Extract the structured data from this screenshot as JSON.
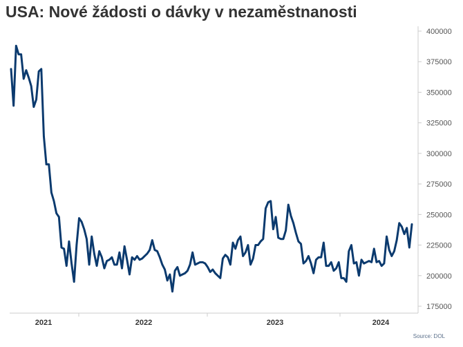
{
  "chart_data": {
    "type": "line",
    "title": "USA: Nové žádosti o dávky v nezaměstnanosti",
    "source": "Source: DOL",
    "xlabel": "",
    "ylabel": "",
    "ylim": [
      175000,
      400000
    ],
    "y_ticks": [
      "400000",
      "375000",
      "350000",
      "325000",
      "300000",
      "275000",
      "250000",
      "225000",
      "200000",
      "175000"
    ],
    "x_ticks": [
      "2021",
      "2022",
      "2023",
      "2024"
    ],
    "grid": false,
    "legend": "none",
    "color": "#0b3a6e",
    "series": [
      {
        "values": [
          369000,
          339000,
          388000,
          381000,
          381000,
          361000,
          368000,
          362000,
          355000,
          338000,
          344000,
          367000,
          369000,
          314000,
          291000,
          291000,
          268000,
          261000,
          251000,
          248000,
          223000,
          222000,
          208000,
          228000,
          210000,
          195000,
          225000,
          247000,
          244000,
          238000,
          230000,
          209000,
          232000,
          218000,
          208000,
          220000,
          215000,
          206000,
          212000,
          213000,
          215000,
          209000,
          209000,
          219000,
          206000,
          224000,
          213000,
          201000,
          215000,
          213000,
          216000,
          213000,
          214000,
          216000,
          218000,
          221000,
          229000,
          221000,
          220000,
          215000,
          209000,
          205000,
          196000,
          201000,
          187000,
          204000,
          207000,
          200000,
          201000,
          202000,
          204000,
          209000,
          219000,
          209000,
          210000,
          211000,
          211000,
          210000,
          207000,
          203000,
          205000,
          202000,
          200000,
          198000,
          214000,
          217000,
          215000,
          209000,
          227000,
          222000,
          229000,
          232000,
          216000,
          219000,
          225000,
          209000,
          214000,
          225000,
          225000,
          228000,
          230000,
          255000,
          260000,
          261000,
          238000,
          248000,
          231000,
          230000,
          230000,
          237000,
          258000,
          249000,
          243000,
          235000,
          228000,
          226000,
          210000,
          212000,
          216000,
          210000,
          202000,
          213000,
          215000,
          215000,
          227000,
          208000,
          208000,
          211000,
          204000,
          206000,
          211000,
          198000,
          198000,
          195000,
          220000,
          225000,
          210000,
          211000,
          200000,
          213000,
          210000,
          211000,
          212000,
          211000,
          222000,
          211000,
          212000,
          208000,
          210000,
          232000,
          221000,
          216000,
          220000,
          229000,
          243000,
          240000,
          234000,
          239000,
          223000,
          242000
        ]
      }
    ]
  }
}
